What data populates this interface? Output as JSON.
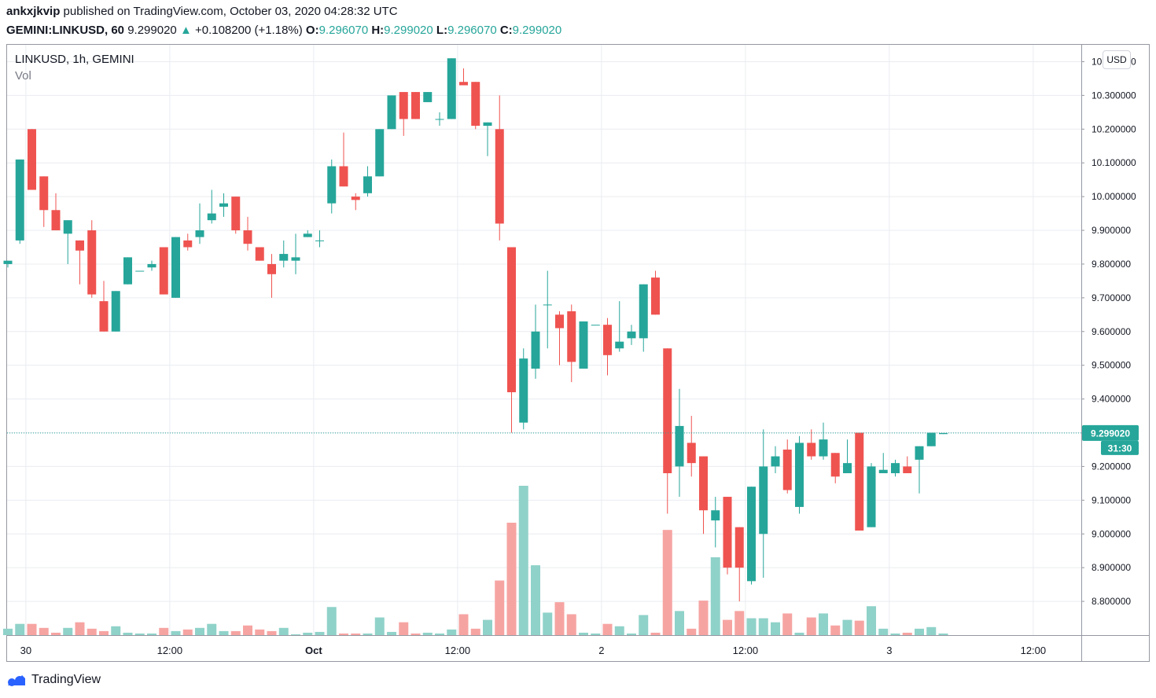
{
  "header": {
    "user": "ankxjkvip",
    "published_text": "published on TradingView.com, October 03, 2020 04:28:32 UTC",
    "symbol_interval": "GEMINI:LINKUSD, 60",
    "last": "9.299020",
    "change_arrow": "▲",
    "change": "+0.108200 (+1.18%)",
    "open_label": "O:",
    "open": "9.296070",
    "high_label": "H:",
    "high": "9.299020",
    "low_label": "L:",
    "low": "9.296070",
    "close_label": "C:",
    "close": "9.299020"
  },
  "legend": {
    "title": "LINKUSD, 1h, GEMINI",
    "vol": "Vol"
  },
  "currency": "USD",
  "price_badge": {
    "price": "9.299020",
    "countdown": "31:30"
  },
  "footer": {
    "brand": "TradingView"
  },
  "colors": {
    "up": "#26a69a",
    "down": "#ef5350",
    "up_vol": "#8fd2c9",
    "down_vol": "#f6a4a2",
    "grid": "#e9ecf1"
  },
  "chart_data": {
    "type": "candlestick",
    "ylim": [
      8.7,
      10.45
    ],
    "y_ticks": [
      "10.400000",
      "10.300000",
      "10.200000",
      "10.100000",
      "10.000000",
      "9.900000",
      "9.800000",
      "9.700000",
      "9.600000",
      "9.500000",
      "9.400000",
      "9.300000",
      "9.200000",
      "9.100000",
      "9.000000",
      "8.900000",
      "8.800000"
    ],
    "y_tick_values": [
      10.4,
      10.3,
      10.2,
      10.1,
      10.0,
      9.9,
      9.8,
      9.7,
      9.6,
      9.5,
      9.4,
      9.3,
      9.2,
      9.1,
      9.0,
      8.9,
      8.8
    ],
    "x_ticks": [
      {
        "label": "30",
        "bar": 1.5
      },
      {
        "label": "12:00",
        "bar": 13.5
      },
      {
        "label": "Oct",
        "bar": 25.5
      },
      {
        "label": "12:00",
        "bar": 37.5
      },
      {
        "label": "2",
        "bar": 49.5
      },
      {
        "label": "12:00",
        "bar": 61.5
      },
      {
        "label": "3",
        "bar": 73.5
      },
      {
        "label": "12:00",
        "bar": 85.5
      }
    ],
    "last_price": 9.29902,
    "candles": [
      {
        "o": 9.8,
        "h": 9.81,
        "l": 9.79,
        "c": 9.81,
        "v": 8
      },
      {
        "o": 9.87,
        "h": 10.11,
        "l": 9.86,
        "c": 10.11,
        "v": 14
      },
      {
        "o": 10.2,
        "h": 10.2,
        "l": 10.02,
        "c": 10.02,
        "v": 14
      },
      {
        "o": 10.06,
        "h": 10.06,
        "l": 9.91,
        "c": 9.96,
        "v": 9
      },
      {
        "o": 9.96,
        "h": 10.01,
        "l": 9.9,
        "c": 9.9,
        "v": 3
      },
      {
        "o": 9.89,
        "h": 9.93,
        "l": 9.8,
        "c": 9.93,
        "v": 9
      },
      {
        "o": 9.87,
        "h": 9.87,
        "l": 9.74,
        "c": 9.84,
        "v": 16
      },
      {
        "o": 9.9,
        "h": 9.93,
        "l": 9.7,
        "c": 9.71,
        "v": 8
      },
      {
        "o": 9.69,
        "h": 9.75,
        "l": 9.6,
        "c": 9.6,
        "v": 5
      },
      {
        "o": 9.6,
        "h": 9.72,
        "l": 9.6,
        "c": 9.72,
        "v": 11
      },
      {
        "o": 9.74,
        "h": 9.82,
        "l": 9.74,
        "c": 9.82,
        "v": 3
      },
      {
        "o": 9.78,
        "h": 9.78,
        "l": 9.78,
        "c": 9.78,
        "v": 2
      },
      {
        "o": 9.79,
        "h": 9.81,
        "l": 9.78,
        "c": 9.8,
        "v": 2
      },
      {
        "o": 9.85,
        "h": 9.85,
        "l": 9.71,
        "c": 9.71,
        "v": 9
      },
      {
        "o": 9.7,
        "h": 9.88,
        "l": 9.7,
        "c": 9.88,
        "v": 5
      },
      {
        "o": 9.87,
        "h": 9.89,
        "l": 9.84,
        "c": 9.85,
        "v": 7
      },
      {
        "o": 9.88,
        "h": 9.98,
        "l": 9.86,
        "c": 9.9,
        "v": 9
      },
      {
        "o": 9.93,
        "h": 10.02,
        "l": 9.92,
        "c": 9.95,
        "v": 14
      },
      {
        "o": 9.97,
        "h": 10.01,
        "l": 9.94,
        "c": 9.98,
        "v": 5
      },
      {
        "o": 10.0,
        "h": 10.0,
        "l": 9.89,
        "c": 9.9,
        "v": 5
      },
      {
        "o": 9.9,
        "h": 9.94,
        "l": 9.84,
        "c": 9.86,
        "v": 12
      },
      {
        "o": 9.85,
        "h": 9.85,
        "l": 9.81,
        "c": 9.81,
        "v": 7
      },
      {
        "o": 9.8,
        "h": 9.83,
        "l": 9.7,
        "c": 9.77,
        "v": 5
      },
      {
        "o": 9.81,
        "h": 9.87,
        "l": 9.79,
        "c": 9.83,
        "v": 9
      },
      {
        "o": 9.81,
        "h": 9.89,
        "l": 9.77,
        "c": 9.82,
        "v": 1
      },
      {
        "o": 9.88,
        "h": 9.9,
        "l": 9.88,
        "c": 9.89,
        "v": 3
      },
      {
        "o": 9.87,
        "h": 9.9,
        "l": 9.85,
        "c": 9.87,
        "v": 4
      },
      {
        "o": 9.98,
        "h": 10.11,
        "l": 9.95,
        "c": 10.09,
        "v": 35
      },
      {
        "o": 10.09,
        "h": 10.19,
        "l": 10.03,
        "c": 10.03,
        "v": 2
      },
      {
        "o": 10.0,
        "h": 10.01,
        "l": 9.96,
        "c": 9.99,
        "v": 2
      },
      {
        "o": 10.01,
        "h": 10.09,
        "l": 10.0,
        "c": 10.06,
        "v": 2
      },
      {
        "o": 10.06,
        "h": 10.2,
        "l": 10.06,
        "c": 10.2,
        "v": 22
      },
      {
        "o": 10.2,
        "h": 10.3,
        "l": 10.2,
        "c": 10.3,
        "v": 4
      },
      {
        "o": 10.31,
        "h": 10.31,
        "l": 10.18,
        "c": 10.23,
        "v": 16
      },
      {
        "o": 10.31,
        "h": 10.31,
        "l": 10.23,
        "c": 10.23,
        "v": 2
      },
      {
        "o": 10.28,
        "h": 10.31,
        "l": 10.28,
        "c": 10.31,
        "v": 3
      },
      {
        "o": 10.23,
        "h": 10.25,
        "l": 10.21,
        "c": 10.23,
        "v": 2
      },
      {
        "o": 10.23,
        "h": 10.41,
        "l": 10.23,
        "c": 10.41,
        "v": 7
      },
      {
        "o": 10.34,
        "h": 10.38,
        "l": 10.33,
        "c": 10.33,
        "v": 26
      },
      {
        "o": 10.34,
        "h": 10.34,
        "l": 10.2,
        "c": 10.21,
        "v": 8
      },
      {
        "o": 10.21,
        "h": 10.22,
        "l": 10.12,
        "c": 10.22,
        "v": 19
      },
      {
        "o": 10.2,
        "h": 10.3,
        "l": 9.87,
        "c": 9.92,
        "v": 68
      },
      {
        "o": 9.85,
        "h": 9.85,
        "l": 9.3,
        "c": 9.42,
        "v": 140
      },
      {
        "o": 9.33,
        "h": 9.55,
        "l": 9.31,
        "c": 9.52,
        "v": 186
      },
      {
        "o": 9.49,
        "h": 9.68,
        "l": 9.46,
        "c": 9.6,
        "v": 87
      },
      {
        "o": 9.68,
        "h": 9.78,
        "l": 9.55,
        "c": 9.68,
        "v": 28
      },
      {
        "o": 9.65,
        "h": 9.66,
        "l": 9.5,
        "c": 9.61,
        "v": 41
      },
      {
        "o": 9.66,
        "h": 9.68,
        "l": 9.45,
        "c": 9.51,
        "v": 26
      },
      {
        "o": 9.49,
        "h": 9.63,
        "l": 9.49,
        "c": 9.63,
        "v": 3
      },
      {
        "o": 9.62,
        "h": 9.62,
        "l": 9.62,
        "c": 9.62,
        "v": 2
      },
      {
        "o": 9.62,
        "h": 9.64,
        "l": 9.47,
        "c": 9.53,
        "v": 14
      },
      {
        "o": 9.55,
        "h": 9.69,
        "l": 9.54,
        "c": 9.57,
        "v": 11
      },
      {
        "o": 9.58,
        "h": 9.62,
        "l": 9.56,
        "c": 9.6,
        "v": 2
      },
      {
        "o": 9.58,
        "h": 9.74,
        "l": 9.54,
        "c": 9.74,
        "v": 25
      },
      {
        "o": 9.76,
        "h": 9.78,
        "l": 9.65,
        "c": 9.65,
        "v": 3
      },
      {
        "o": 9.55,
        "h": 9.55,
        "l": 9.06,
        "c": 9.18,
        "v": 131
      },
      {
        "o": 9.2,
        "h": 9.43,
        "l": 9.11,
        "c": 9.32,
        "v": 30
      },
      {
        "o": 9.27,
        "h": 9.35,
        "l": 9.17,
        "c": 9.21,
        "v": 8
      },
      {
        "o": 9.23,
        "h": 9.23,
        "l": 9.0,
        "c": 9.07,
        "v": 43
      },
      {
        "o": 9.04,
        "h": 9.11,
        "l": 8.96,
        "c": 9.07,
        "v": 97
      },
      {
        "o": 9.11,
        "h": 9.11,
        "l": 8.88,
        "c": 8.9,
        "v": 19
      },
      {
        "o": 9.02,
        "h": 9.02,
        "l": 8.8,
        "c": 8.9,
        "v": 30
      },
      {
        "o": 8.86,
        "h": 9.14,
        "l": 8.85,
        "c": 9.14,
        "v": 21
      },
      {
        "o": 9.0,
        "h": 9.31,
        "l": 8.87,
        "c": 9.2,
        "v": 21
      },
      {
        "o": 9.2,
        "h": 9.26,
        "l": 9.18,
        "c": 9.23,
        "v": 16
      },
      {
        "o": 9.25,
        "h": 9.28,
        "l": 9.12,
        "c": 9.13,
        "v": 27
      },
      {
        "o": 9.08,
        "h": 9.29,
        "l": 9.06,
        "c": 9.27,
        "v": 3
      },
      {
        "o": 9.27,
        "h": 9.31,
        "l": 9.22,
        "c": 9.23,
        "v": 22
      },
      {
        "o": 9.23,
        "h": 9.33,
        "l": 9.22,
        "c": 9.28,
        "v": 27
      },
      {
        "o": 9.24,
        "h": 9.24,
        "l": 9.15,
        "c": 9.17,
        "v": 12
      },
      {
        "o": 9.18,
        "h": 9.28,
        "l": 9.18,
        "c": 9.21,
        "v": 19
      },
      {
        "o": 9.3,
        "h": 9.3,
        "l": 9.01,
        "c": 9.01,
        "v": 18
      },
      {
        "o": 9.02,
        "h": 9.21,
        "l": 9.02,
        "c": 9.2,
        "v": 36
      },
      {
        "o": 9.18,
        "h": 9.24,
        "l": 9.18,
        "c": 9.19,
        "v": 8
      },
      {
        "o": 9.18,
        "h": 9.22,
        "l": 9.17,
        "c": 9.21,
        "v": 2
      },
      {
        "o": 9.2,
        "h": 9.23,
        "l": 9.18,
        "c": 9.18,
        "v": 3
      },
      {
        "o": 9.22,
        "h": 9.26,
        "l": 9.12,
        "c": 9.26,
        "v": 8
      },
      {
        "o": 9.26,
        "h": 9.3,
        "l": 9.26,
        "c": 9.3,
        "v": 10
      },
      {
        "o": 9.296,
        "h": 9.299,
        "l": 9.296,
        "c": 9.299,
        "v": 2
      }
    ]
  }
}
